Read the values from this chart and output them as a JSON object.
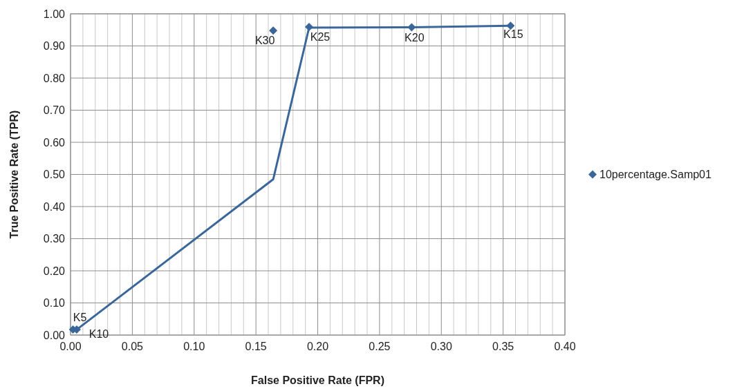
{
  "chart_data": {
    "type": "scatter",
    "xlabel": "False Positive Rate (FPR)",
    "ylabel": "True Positive Rate (TPR)",
    "xlim": [
      0,
      0.4
    ],
    "ylim": [
      0,
      1
    ],
    "xticks": [
      {
        "value": 0,
        "label": "0.00"
      },
      {
        "value": 0.01,
        "label": null
      },
      {
        "value": 0.02,
        "label": null
      },
      {
        "value": 0.03,
        "label": null
      },
      {
        "value": 0.04,
        "label": null
      },
      {
        "value": 0.05,
        "label": "0.05"
      },
      {
        "value": 0.06,
        "label": null
      },
      {
        "value": 0.07,
        "label": null
      },
      {
        "value": 0.08,
        "label": null
      },
      {
        "value": 0.09,
        "label": null
      },
      {
        "value": 0.1,
        "label": "0.10"
      },
      {
        "value": 0.11,
        "label": null
      },
      {
        "value": 0.12,
        "label": null
      },
      {
        "value": 0.13,
        "label": null
      },
      {
        "value": 0.14,
        "label": null
      },
      {
        "value": 0.15,
        "label": "0.15"
      },
      {
        "value": 0.16,
        "label": null
      },
      {
        "value": 0.17,
        "label": null
      },
      {
        "value": 0.18,
        "label": null
      },
      {
        "value": 0.19,
        "label": null
      },
      {
        "value": 0.2,
        "label": "0.20"
      },
      {
        "value": 0.21,
        "label": null
      },
      {
        "value": 0.22,
        "label": null
      },
      {
        "value": 0.23,
        "label": null
      },
      {
        "value": 0.24,
        "label": null
      },
      {
        "value": 0.25,
        "label": "0.25"
      },
      {
        "value": 0.26,
        "label": null
      },
      {
        "value": 0.27,
        "label": null
      },
      {
        "value": 0.28,
        "label": null
      },
      {
        "value": 0.29,
        "label": null
      },
      {
        "value": 0.3,
        "label": "0.30"
      },
      {
        "value": 0.31,
        "label": null
      },
      {
        "value": 0.32,
        "label": null
      },
      {
        "value": 0.33,
        "label": null
      },
      {
        "value": 0.34,
        "label": null
      },
      {
        "value": 0.35,
        "label": "0.35"
      },
      {
        "value": 0.36,
        "label": null
      },
      {
        "value": 0.37,
        "label": null
      },
      {
        "value": 0.38,
        "label": null
      },
      {
        "value": 0.39,
        "label": null
      },
      {
        "value": 0.4,
        "label": "0.40"
      }
    ],
    "yticks": [
      {
        "value": 0,
        "label": "0.00"
      },
      {
        "value": 0.1,
        "label": "0.10"
      },
      {
        "value": 0.2,
        "label": "0.20"
      },
      {
        "value": 0.3,
        "label": "0.30"
      },
      {
        "value": 0.4,
        "label": "0.40"
      },
      {
        "value": 0.5,
        "label": "0.50"
      },
      {
        "value": 0.6,
        "label": "0.60"
      },
      {
        "value": 0.7,
        "label": "0.70"
      },
      {
        "value": 0.8,
        "label": "0.80"
      },
      {
        "value": 0.9,
        "label": "0.90"
      },
      {
        "value": 1,
        "label": "1.00"
      }
    ],
    "grid": true,
    "legend": "right",
    "marker": "diamond",
    "series": [
      {
        "type": "line",
        "color": "#3a6699",
        "marker": "none",
        "x": [
          0.002,
          0.005,
          0.164,
          0.193,
          0.276,
          0.356
        ],
        "values": [
          0.017,
          0.017,
          0.485,
          0.957,
          0.958,
          0.963
        ]
      },
      {
        "name": "10percentage.Samp01",
        "color": "#3a6699",
        "x": [
          0.002,
          0.005,
          0.164,
          0.193,
          0.276,
          0.356
        ],
        "values": [
          0.017,
          0.017,
          0.948,
          0.959,
          0.958,
          0.963
        ]
      }
    ],
    "annotations": [
      {
        "text": "K5",
        "x": 0.002,
        "y": 0.017
      },
      {
        "text": "K10",
        "x": 0.005,
        "y": 0.017
      },
      {
        "text": "K30",
        "x": 0.164,
        "y": 0.948
      },
      {
        "text": "K25",
        "x": 0.193,
        "y": 0.959
      },
      {
        "text": "K20",
        "x": 0.276,
        "y": 0.958
      },
      {
        "text": "K15",
        "x": 0.356,
        "y": 0.963
      }
    ]
  }
}
